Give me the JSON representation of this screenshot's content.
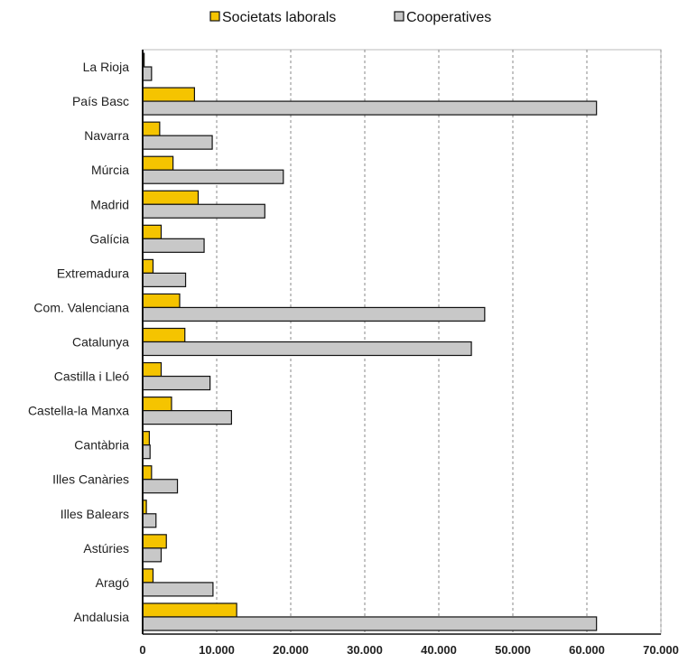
{
  "chart_data": {
    "type": "bar",
    "orientation": "horizontal",
    "categories": [
      "La Rioja",
      "País Basc",
      "Navarra",
      "Múrcia",
      "Madrid",
      "Galícia",
      "Extremadura",
      "Com. Valenciana",
      "Catalunya",
      "Castilla i Lleó",
      "Castella-la Manxa",
      "Cantàbria",
      "Illes Canàries",
      "Illes Balears",
      "Astúries",
      "Aragó",
      "Andalusia"
    ],
    "series": [
      {
        "name": "Societats laborals",
        "color": "#f5c400",
        "values": [
          200,
          7000,
          2300,
          4100,
          7500,
          2500,
          1400,
          5000,
          5700,
          2500,
          3900,
          900,
          1200,
          500,
          3200,
          1400,
          12700
        ]
      },
      {
        "name": "Cooperatives",
        "color": "#c8c8c8",
        "values": [
          1200,
          61300,
          9400,
          19000,
          16500,
          8300,
          5800,
          46200,
          44400,
          9100,
          12000,
          1000,
          4700,
          1800,
          2500,
          9500,
          61300
        ]
      }
    ],
    "xlim": [
      0,
      70000
    ],
    "xticks": [
      "0",
      "10.000",
      "20.000",
      "30.000",
      "40.000",
      "50.000",
      "60.000",
      "70.000"
    ],
    "xlabel": "",
    "ylabel": "",
    "title": "",
    "legend_position": "top",
    "grid": "vertical dashed"
  }
}
